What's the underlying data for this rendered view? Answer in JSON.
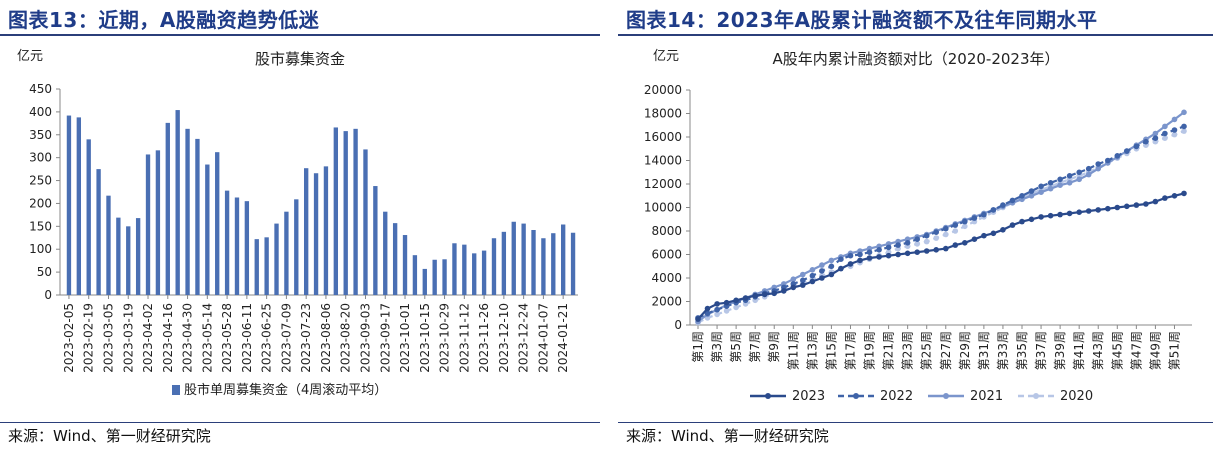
{
  "left_panel": {
    "figure_title": "图表13：近期，A股融资趋势低迷",
    "source": "来源：Wind、第一财经研究院",
    "chart_data": {
      "type": "bar",
      "title": "股市募集资金",
      "ylabel": "亿元",
      "ylim": [
        0,
        450
      ],
      "yticks": [
        0,
        50,
        100,
        150,
        200,
        250,
        300,
        350,
        400,
        450
      ],
      "legend_position": "bottom",
      "grid": false,
      "series": [
        {
          "name": "股市单周募集资金（4周滚动平均）",
          "color": "#4a6fb3",
          "values": [
            392,
            388,
            340,
            275,
            217,
            169,
            150,
            168,
            307,
            316,
            376,
            404,
            363,
            341,
            285,
            312,
            228,
            213,
            205,
            122,
            126,
            156,
            182,
            209,
            277,
            266,
            281,
            366,
            358,
            363,
            318,
            238,
            182,
            157,
            131,
            87,
            57,
            77,
            78,
            113,
            110,
            91,
            97,
            124,
            138,
            160,
            156,
            142,
            124,
            135,
            154,
            136
          ]
        }
      ],
      "tick_labels": [
        "2023-02-05",
        "2023-02-19",
        "2023-03-05",
        "2023-03-19",
        "2023-04-02",
        "2023-04-16",
        "2023-04-30",
        "2023-05-14",
        "2023-05-28",
        "2023-06-11",
        "2023-06-25",
        "2023-07-09",
        "2023-07-23",
        "2023-08-06",
        "2023-08-20",
        "2023-09-03",
        "2023-09-17",
        "2023-10-01",
        "2023-10-15",
        "2023-10-29",
        "2023-11-12",
        "2023-11-26",
        "2023-12-10",
        "2023-12-24",
        "2024-01-07",
        "2024-01-21"
      ]
    }
  },
  "right_panel": {
    "figure_title": "图表14：2023年A股累计融资额不及往年同期水平",
    "source": "来源：Wind、第一财经研究院",
    "chart_data": {
      "type": "line",
      "title": "A股年内累计融资额对比（2020-2023年）",
      "ylabel": "亿元",
      "ylim": [
        0,
        20000
      ],
      "yticks": [
        0,
        2000,
        4000,
        6000,
        8000,
        10000,
        12000,
        14000,
        16000,
        18000,
        20000
      ],
      "legend_position": "bottom",
      "grid": false,
      "tick_labels": [
        "第1周",
        "第3周",
        "第5周",
        "第7周",
        "第9周",
        "第11周",
        "第13周",
        "第15周",
        "第17周",
        "第19周",
        "第21周",
        "第23周",
        "第25周",
        "第27周",
        "第29周",
        "第31周",
        "第33周",
        "第35周",
        "第37周",
        "第39周",
        "第41周",
        "第43周",
        "第45周",
        "第47周",
        "第49周",
        "第51周"
      ],
      "series": [
        {
          "name": "2023",
          "color": "#2a4a8c",
          "style": "solid",
          "values": [
            500,
            1400,
            1800,
            1900,
            2100,
            2300,
            2500,
            2600,
            2700,
            2900,
            3200,
            3400,
            3700,
            4000,
            4300,
            4800,
            5200,
            5500,
            5700,
            5800,
            5900,
            6000,
            6100,
            6200,
            6300,
            6400,
            6500,
            6800,
            7000,
            7300,
            7600,
            7800,
            8100,
            8500,
            8800,
            9000,
            9200,
            9300,
            9400,
            9500,
            9600,
            9700,
            9800,
            9900,
            10000,
            10100,
            10200,
            10300,
            10500,
            10800,
            11000,
            11200
          ]
        },
        {
          "name": "2022",
          "color": "#3f63a8",
          "style": "dashed",
          "values": [
            600,
            1000,
            1300,
            1600,
            1900,
            2100,
            2400,
            2700,
            2900,
            3200,
            3500,
            3800,
            4200,
            4600,
            5000,
            5600,
            5900,
            6000,
            6200,
            6400,
            6600,
            6800,
            7000,
            7300,
            7600,
            7900,
            8200,
            8500,
            8800,
            9100,
            9400,
            9800,
            10200,
            10600,
            11000,
            11400,
            11800,
            12100,
            12400,
            12700,
            13000,
            13300,
            13700,
            14000,
            14400,
            14800,
            15200,
            15600,
            15900,
            16300,
            16600,
            16900
          ]
        },
        {
          "name": "2021",
          "color": "#7b95cc",
          "style": "solid",
          "values": [
            300,
            900,
            1300,
            1700,
            2000,
            2300,
            2600,
            2900,
            3200,
            3500,
            3900,
            4300,
            4700,
            5100,
            5500,
            5800,
            6100,
            6300,
            6500,
            6700,
            6900,
            7100,
            7300,
            7500,
            7700,
            8000,
            8300,
            8600,
            8900,
            9200,
            9500,
            9800,
            10100,
            10400,
            10700,
            11000,
            11300,
            11600,
            11900,
            12100,
            12400,
            12800,
            13300,
            13800,
            14300,
            14800,
            15300,
            15800,
            16300,
            16900,
            17500,
            18100
          ]
        },
        {
          "name": "2020",
          "color": "#b7c6e6",
          "style": "dashed",
          "values": [
            200,
            600,
            900,
            1200,
            1500,
            1800,
            2100,
            2400,
            2700,
            3000,
            3300,
            3600,
            3900,
            4200,
            4500,
            4800,
            5000,
            5300,
            5600,
            5900,
            6200,
            6500,
            6700,
            6900,
            7100,
            7400,
            7700,
            8000,
            8400,
            8800,
            9200,
            9600,
            10000,
            10400,
            10800,
            11200,
            11500,
            11800,
            12100,
            12400,
            12700,
            13000,
            13400,
            13800,
            14200,
            14600,
            15000,
            15300,
            15600,
            15900,
            16200,
            16500
          ]
        }
      ]
    }
  }
}
